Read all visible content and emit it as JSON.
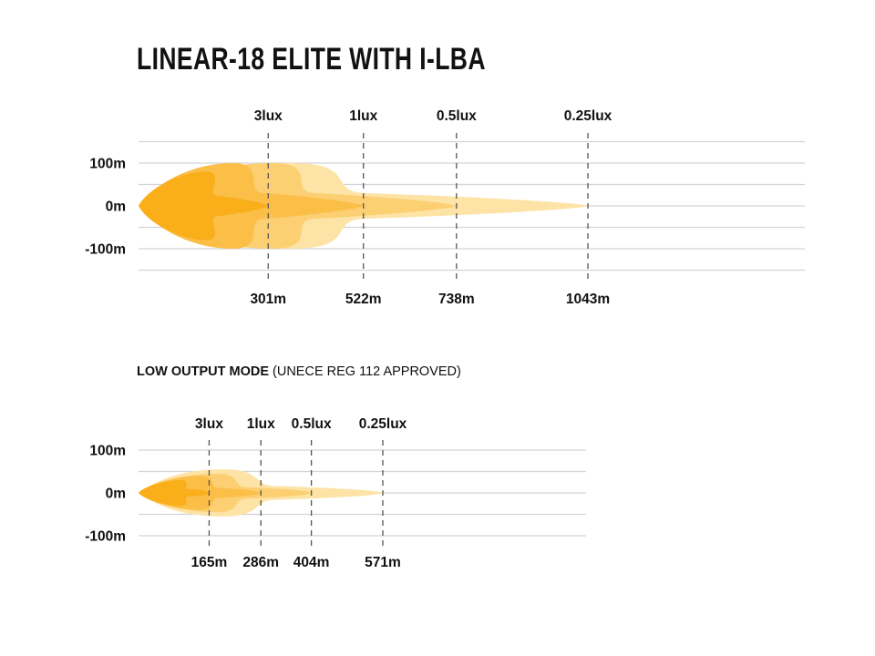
{
  "title": "LINEAR-18 ELITE WITH I-LBA",
  "subtitle": {
    "mode": "LOW OUTPUT MODE",
    "note": "(UNECE REG 112 APPROVED)"
  },
  "colors": {
    "outer": "#FDE3A6",
    "mid": "#FCCF73",
    "inner": "#FBBE47",
    "core": "#F9AE1A",
    "grid": "#d4d4d4",
    "marker": "#555555"
  },
  "chart_data": [
    {
      "type": "area",
      "title": "LINEAR-18 ELITE WITH I-LBA",
      "ylim": [
        -150,
        150
      ],
      "y_ticks": [
        "100m",
        "0m",
        "-100m"
      ],
      "lux_labels": [
        "3lux",
        "1lux",
        "0.5lux",
        "0.25lux"
      ],
      "distances_m": [
        301,
        522,
        738,
        1043
      ],
      "distance_labels": [
        "301m",
        "522m",
        "738m",
        "1043m"
      ],
      "max_half_width_m": [
        80,
        100,
        100,
        100
      ]
    },
    {
      "type": "area",
      "title": "LOW OUTPUT MODE (UNECE REG 112 APPROVED)",
      "ylim": [
        -100,
        100
      ],
      "y_ticks": [
        "100m",
        "0m",
        "-100m"
      ],
      "lux_labels": [
        "3lux",
        "1lux",
        "0.5lux",
        "0.25lux"
      ],
      "distances_m": [
        165,
        286,
        404,
        571
      ],
      "distance_labels": [
        "165m",
        "286m",
        "404m",
        "571m"
      ],
      "max_half_width_m": [
        30,
        40,
        45,
        55
      ]
    }
  ]
}
